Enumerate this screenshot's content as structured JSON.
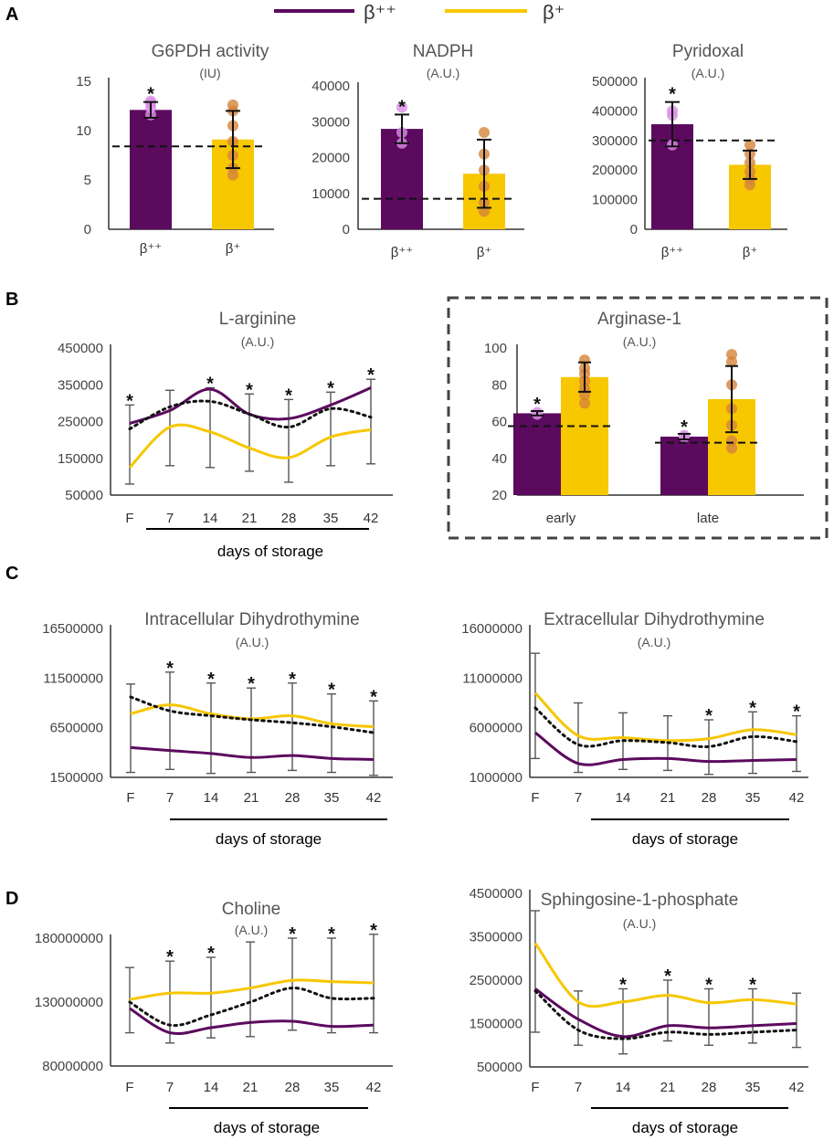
{
  "colors": {
    "bpp": "#5b0a5e",
    "bp": "#f7c700",
    "bpp_dot": "#d98ce6",
    "bp_dot": "#d4843a",
    "axis": "#333333",
    "err": "#555555",
    "text": "#555555"
  },
  "legend": {
    "bpp_label": "β⁺⁺",
    "bp_label": "β⁺"
  },
  "panel_labels": {
    "a": "A",
    "b": "B",
    "c": "C",
    "d": "D"
  },
  "days_label": "days of storage",
  "chart_data": [
    {
      "id": "g6pdh",
      "type": "bar",
      "title": "G6PDH activity",
      "subtitle": "(IU)",
      "categories": [
        "β⁺⁺",
        "β⁺"
      ],
      "values": [
        12.1,
        9.1
      ],
      "errors": [
        0.8,
        2.9
      ],
      "ylim": [
        0,
        15
      ],
      "yticks": [
        "0",
        "5",
        "10",
        "15"
      ],
      "reference": 8.4,
      "points": [
        [
          13.0,
          12.3,
          11.6,
          12.8
        ],
        [
          12.6,
          12.0,
          10.5,
          8.9,
          7.5,
          6.2,
          5.5
        ]
      ],
      "sig": [
        true,
        false
      ]
    },
    {
      "id": "nadph",
      "type": "bar",
      "title": "NADPH",
      "subtitle": "(A.U.)",
      "categories": [
        "β⁺⁺",
        "β⁺"
      ],
      "values": [
        28000,
        15500
      ],
      "errors": [
        4000,
        9500
      ],
      "ylim": [
        0,
        40000
      ],
      "yticks": [
        "0",
        "10000",
        "20000",
        "30000",
        "40000"
      ],
      "reference": 8500,
      "points": [
        [
          34000,
          27000,
          24000
        ],
        [
          27000,
          21000,
          16500,
          12000,
          7500,
          5000
        ]
      ],
      "sig": [
        true,
        false
      ]
    },
    {
      "id": "pyridoxal",
      "type": "bar",
      "title": "Pyridoxal",
      "subtitle": "(A.U.)",
      "categories": [
        "β⁺⁺",
        "β⁺"
      ],
      "values": [
        355000,
        218000
      ],
      "errors": [
        75000,
        48000
      ],
      "ylim": [
        0,
        500000
      ],
      "yticks": [
        "0",
        "100000",
        "200000",
        "300000",
        "400000",
        "500000"
      ],
      "reference": 300000,
      "points": [
        [
          400000,
          385000,
          285000
        ],
        [
          285000,
          255000,
          225000,
          195000,
          170000,
          150000
        ]
      ],
      "sig": [
        true,
        false
      ]
    },
    {
      "id": "arginine",
      "type": "line",
      "title": "L-arginine",
      "subtitle": "(A.U.)",
      "categories": [
        "F",
        "7",
        "14",
        "21",
        "28",
        "35",
        "42"
      ],
      "ylim": [
        50000,
        450000
      ],
      "yticks": [
        "50000",
        "150000",
        "250000",
        "350000",
        "450000"
      ],
      "series": [
        {
          "name": "β⁺⁺",
          "values": [
            245000,
            280000,
            338000,
            270000,
            258000,
            295000,
            342000
          ]
        },
        {
          "name": "β⁺",
          "values": [
            125000,
            235000,
            222000,
            178000,
            152000,
            208000,
            228000
          ]
        },
        {
          "name": "reference",
          "values": [
            230000,
            290000,
            305000,
            270000,
            235000,
            285000,
            262000
          ]
        }
      ],
      "err_hi": [
        295000,
        335000,
        342000,
        325000,
        310000,
        330000,
        365000
      ],
      "err_lo": [
        80000,
        130000,
        125000,
        115000,
        85000,
        130000,
        135000
      ],
      "sig": [
        true,
        false,
        true,
        true,
        true,
        true,
        true
      ]
    },
    {
      "id": "arginase",
      "type": "bar",
      "title": "Arginase-1",
      "subtitle": "(A.U.)",
      "categories": [
        "early",
        "late"
      ],
      "series": [
        {
          "name": "β⁺⁺",
          "values": [
            64.5,
            51.8
          ],
          "errors": [
            1.2,
            1.5
          ]
        },
        {
          "name": "β⁺",
          "values": [
            84.2,
            72.2
          ],
          "errors": [
            8.0,
            18.0
          ]
        }
      ],
      "ylim": [
        20,
        100
      ],
      "yticks": [
        "20",
        "40",
        "60",
        "80",
        "100"
      ],
      "reference": [
        57.5,
        48.5
      ],
      "points": [
        [
          [
            65.0,
            64.0
          ],
          [
            93.5,
            89.0,
            86.0,
            82.0,
            78.0,
            74.5,
            70.0
          ]
        ],
        [
          [
            52.5,
            51.5
          ],
          [
            96.5,
            92.5,
            80.0,
            67.0,
            58.0,
            49.5,
            45.5
          ]
        ]
      ],
      "sig": [
        true,
        true
      ]
    },
    {
      "id": "intra_dht",
      "type": "line",
      "title": "Intracellular Dihydrothymine",
      "subtitle": "(A.U.)",
      "categories": [
        "F",
        "7",
        "14",
        "21",
        "28",
        "35",
        "42"
      ],
      "ylim": [
        1500000,
        16500000
      ],
      "yticks": [
        "1500000",
        "6500000",
        "11500000",
        "16500000"
      ],
      "series": [
        {
          "name": "β⁺",
          "values": [
            7900000,
            8800000,
            7900000,
            7400000,
            7700000,
            6900000,
            6600000
          ]
        },
        {
          "name": "reference",
          "values": [
            9600000,
            8200000,
            7700000,
            7300000,
            7000000,
            6600000,
            6000000
          ]
        },
        {
          "name": "β⁺⁺",
          "values": [
            4500000,
            4200000,
            3900000,
            3500000,
            3700000,
            3400000,
            3300000
          ]
        }
      ],
      "err_hi": [
        10900000,
        12100000,
        11000000,
        10500000,
        11000000,
        9900000,
        9200000
      ],
      "err_lo": [
        2000000,
        2300000,
        1900000,
        2000000,
        2200000,
        2000000,
        1700000
      ],
      "sig": [
        false,
        true,
        true,
        true,
        true,
        true,
        true
      ]
    },
    {
      "id": "extra_dht",
      "type": "line",
      "title": "Extracellular Dihydrothymine",
      "subtitle": "(A.U.)",
      "categories": [
        "F",
        "7",
        "14",
        "21",
        "28",
        "35",
        "42"
      ],
      "ylim": [
        1000000,
        16000000
      ],
      "yticks": [
        "1000000",
        "6000000",
        "11000000",
        "16000000"
      ],
      "series": [
        {
          "name": "β⁺",
          "values": [
            9500000,
            5200000,
            5000000,
            4700000,
            4900000,
            5800000,
            5300000
          ]
        },
        {
          "name": "reference",
          "values": [
            8000000,
            4300000,
            4700000,
            4500000,
            4100000,
            5100000,
            4600000
          ]
        },
        {
          "name": "β⁺⁺",
          "values": [
            5500000,
            2400000,
            2800000,
            2900000,
            2600000,
            2700000,
            2800000
          ]
        }
      ],
      "err_hi": [
        13500000,
        8500000,
        7500000,
        7200000,
        6800000,
        7600000,
        7200000
      ],
      "err_lo": [
        2900000,
        1500000,
        1800000,
        1700000,
        1300000,
        1400000,
        1600000
      ],
      "sig": [
        false,
        false,
        false,
        false,
        true,
        true,
        true
      ]
    },
    {
      "id": "choline",
      "type": "line",
      "title": "Choline",
      "subtitle": "(A.U.)",
      "categories": [
        "F",
        "7",
        "14",
        "21",
        "28",
        "35",
        "42"
      ],
      "ylim": [
        80000000,
        180000000
      ],
      "yticks": [
        "80000000",
        "130000000",
        "180000000"
      ],
      "series": [
        {
          "name": "β⁺",
          "values": [
            132000000,
            137000000,
            137000000,
            141000000,
            147000000,
            146000000,
            145000000
          ]
        },
        {
          "name": "reference",
          "values": [
            130000000,
            112000000,
            120000000,
            130000000,
            141000000,
            133000000,
            133000000
          ]
        },
        {
          "name": "β⁺⁺",
          "values": [
            125000000,
            106000000,
            110000000,
            114000000,
            115000000,
            111000000,
            112000000
          ]
        }
      ],
      "err_hi": [
        157000000,
        162000000,
        165000000,
        177000000,
        180000000,
        180000000,
        183000000
      ],
      "err_lo": [
        106000000,
        98000000,
        102000000,
        103000000,
        108000000,
        106000000,
        106000000
      ],
      "sig": [
        false,
        true,
        true,
        false,
        true,
        true,
        true
      ]
    },
    {
      "id": "s1p",
      "type": "line",
      "title": "Sphingosine-1-phosphate",
      "subtitle": "(A.U.)",
      "categories": [
        "F",
        "7",
        "14",
        "21",
        "28",
        "35",
        "42"
      ],
      "ylim": [
        500000,
        4500000
      ],
      "yticks": [
        "500000",
        "1500000",
        "2500000",
        "3500000",
        "4500000"
      ],
      "series": [
        {
          "name": "β⁺",
          "values": [
            3350000,
            2000000,
            2000000,
            2150000,
            1980000,
            2050000,
            1950000
          ]
        },
        {
          "name": "β⁺⁺",
          "values": [
            2300000,
            1600000,
            1200000,
            1450000,
            1400000,
            1450000,
            1500000
          ]
        },
        {
          "name": "reference",
          "values": [
            2250000,
            1350000,
            1150000,
            1300000,
            1250000,
            1300000,
            1350000
          ]
        }
      ],
      "err_hi": [
        4100000,
        2250000,
        2300000,
        2500000,
        2300000,
        2300000,
        2200000
      ],
      "err_lo": [
        1300000,
        1000000,
        800000,
        1100000,
        1000000,
        1050000,
        950000
      ],
      "sig": [
        false,
        false,
        true,
        true,
        true,
        true,
        false
      ]
    }
  ]
}
